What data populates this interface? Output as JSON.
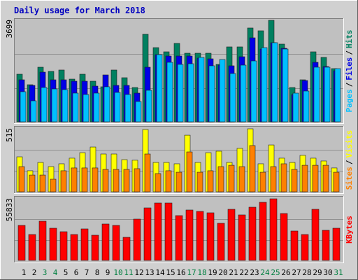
{
  "chart_data": [
    {
      "type": "bar",
      "title": "Daily usage for March 2018",
      "ylim": [
        0,
        3699
      ],
      "yticks": [
        3699
      ],
      "legend_separator": "/",
      "series": [
        {
          "name": "Pages",
          "color": "#00c0ff",
          "values": [
            1097,
            765,
            1250,
            1199,
            1173,
            1046,
            995,
            1046,
            1276,
            1071,
            995,
            740,
            1148,
            2449,
            2168,
            2092,
            2117,
            2347,
            2041,
            2270,
            1760,
            2066,
            2219,
            2704,
            2883,
            2653,
            1046,
            1122,
            1990,
            1990,
            1939
          ]
        },
        {
          "name": "Files",
          "color": "#0000e6",
          "values": [
            1531,
            1327,
            1811,
            1531,
            1531,
            1480,
            1480,
            1301,
            1709,
            1327,
            1327,
            1046,
            1990,
            2449,
            2398,
            2398,
            2398,
            2321,
            2296,
            2066,
            2041,
            2372,
            3061,
            2653,
            2883,
            2679,
            995,
            1505,
            2168,
            2015,
            1862
          ]
        },
        {
          "name": "Hits",
          "color": "#008060",
          "values": [
            1735,
            1352,
            1990,
            1837,
            1888,
            1556,
            1735,
            1480,
            1276,
            1888,
            1607,
            1250,
            3189,
            2704,
            2551,
            2857,
            2500,
            2500,
            2500,
            2092,
            2730,
            2730,
            3419,
            3317,
            3699,
            2832,
            1250,
            1531,
            2551,
            2347,
            1939
          ]
        }
      ]
    },
    {
      "type": "bar",
      "ylim": [
        0,
        515
      ],
      "yticks": [
        515
      ],
      "legend_separator": "/",
      "series": [
        {
          "name": "Sites",
          "color": "#ff8000",
          "values": [
            206,
            137,
            137,
            103,
            172,
            195,
            195,
            195,
            183,
            183,
            183,
            189,
            309,
            149,
            172,
            160,
            326,
            160,
            172,
            206,
            217,
            206,
            378,
            160,
            206,
            229,
            183,
            217,
            217,
            217,
            160
          ]
        },
        {
          "name": "Visits",
          "color": "#ffff00",
          "values": [
            286,
            172,
            240,
            206,
            229,
            275,
            320,
            366,
            309,
            309,
            263,
            258,
            509,
            240,
            240,
            229,
            463,
            240,
            320,
            332,
            240,
            355,
            515,
            229,
            383,
            275,
            240,
            298,
            275,
            252,
            195
          ]
        }
      ]
    },
    {
      "type": "bar",
      "ylim": [
        0,
        55833
      ],
      "yticks": [
        55833
      ],
      "categories": [
        "1",
        "2",
        "3",
        "4",
        "5",
        "6",
        "7",
        "8",
        "9",
        "10",
        "11",
        "12",
        "13",
        "14",
        "15",
        "16",
        "17",
        "18",
        "19",
        "20",
        "21",
        "22",
        "23",
        "24",
        "25",
        "26",
        "27",
        "28",
        "29",
        "30",
        "31"
      ],
      "category_colors": [
        "#000000",
        "#000000",
        "#008040",
        "#008040",
        "#000000",
        "#000000",
        "#000000",
        "#000000",
        "#000000",
        "#008040",
        "#008040",
        "#000000",
        "#000000",
        "#000000",
        "#000000",
        "#000000",
        "#008040",
        "#008040",
        "#000000",
        "#000000",
        "#000000",
        "#000000",
        "#000000",
        "#008040",
        "#008040",
        "#000000",
        "#000000",
        "#000000",
        "#000000",
        "#000000",
        "#008040"
      ],
      "series": [
        {
          "name": "KBytes",
          "color": "#ff0000",
          "values": [
            31725,
            23477,
            35532,
            29187,
            26015,
            23477,
            28553,
            22842,
            32994,
            31725,
            20939,
            37436,
            47588,
            52029,
            52029,
            40608,
            45684,
            44415,
            43146,
            33629,
            46319,
            41243,
            48222,
            52664,
            55833,
            42512,
            26649,
            23477,
            46319,
            27284,
            29187
          ]
        }
      ]
    }
  ]
}
